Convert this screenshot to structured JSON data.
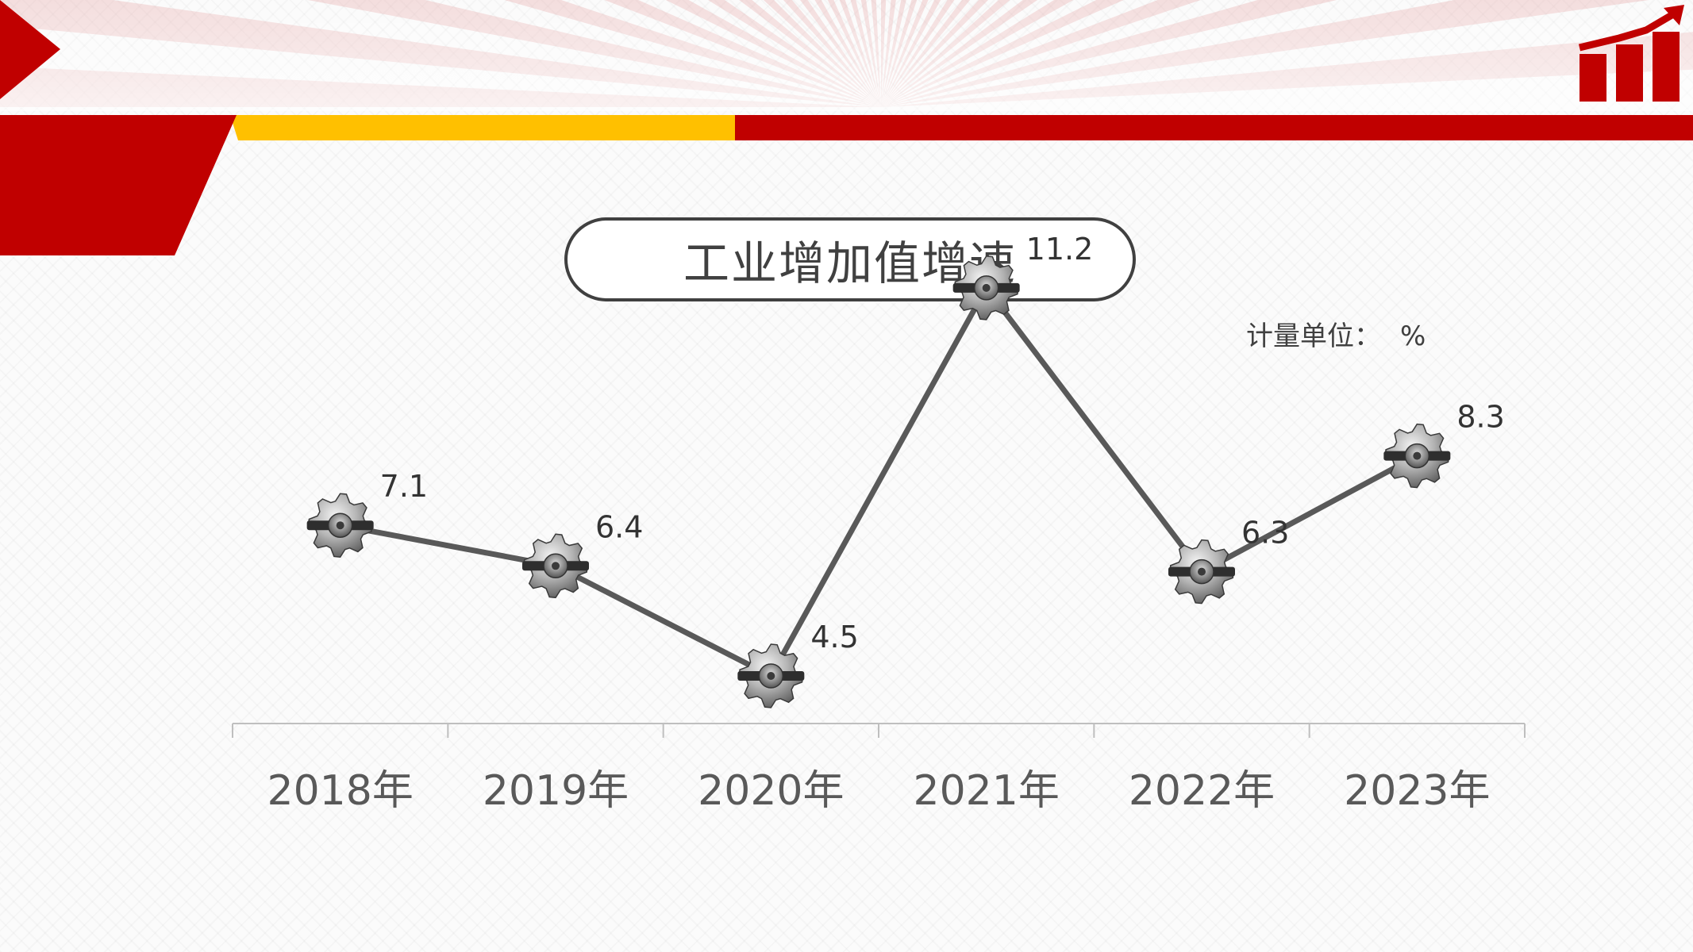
{
  "header": {
    "title": "工业增加值增速",
    "unit_label": "计量单位：",
    "unit_symbol": "%"
  },
  "colors": {
    "brand_red": "#c00000",
    "accent_yellow": "#ffc000",
    "line": "#595959",
    "text": "#404040"
  },
  "icons": {
    "marker": "gear-icon",
    "corner": "bar-chart-growth-icon"
  },
  "chart_data": {
    "type": "line",
    "title": "工业增加值增速",
    "xlabel": "",
    "ylabel": "",
    "unit": "%",
    "categories": [
      "2018年",
      "2019年",
      "2020年",
      "2021年",
      "2022年",
      "2023年"
    ],
    "values": [
      7.1,
      6.4,
      4.5,
      11.2,
      6.3,
      8.3
    ],
    "data_labels": [
      "7.1",
      "6.4",
      "4.5",
      "11.2",
      "6.3",
      "8.3"
    ],
    "ylim": [
      0,
      15
    ],
    "grid": false,
    "legend": "none",
    "marker": "gear"
  }
}
